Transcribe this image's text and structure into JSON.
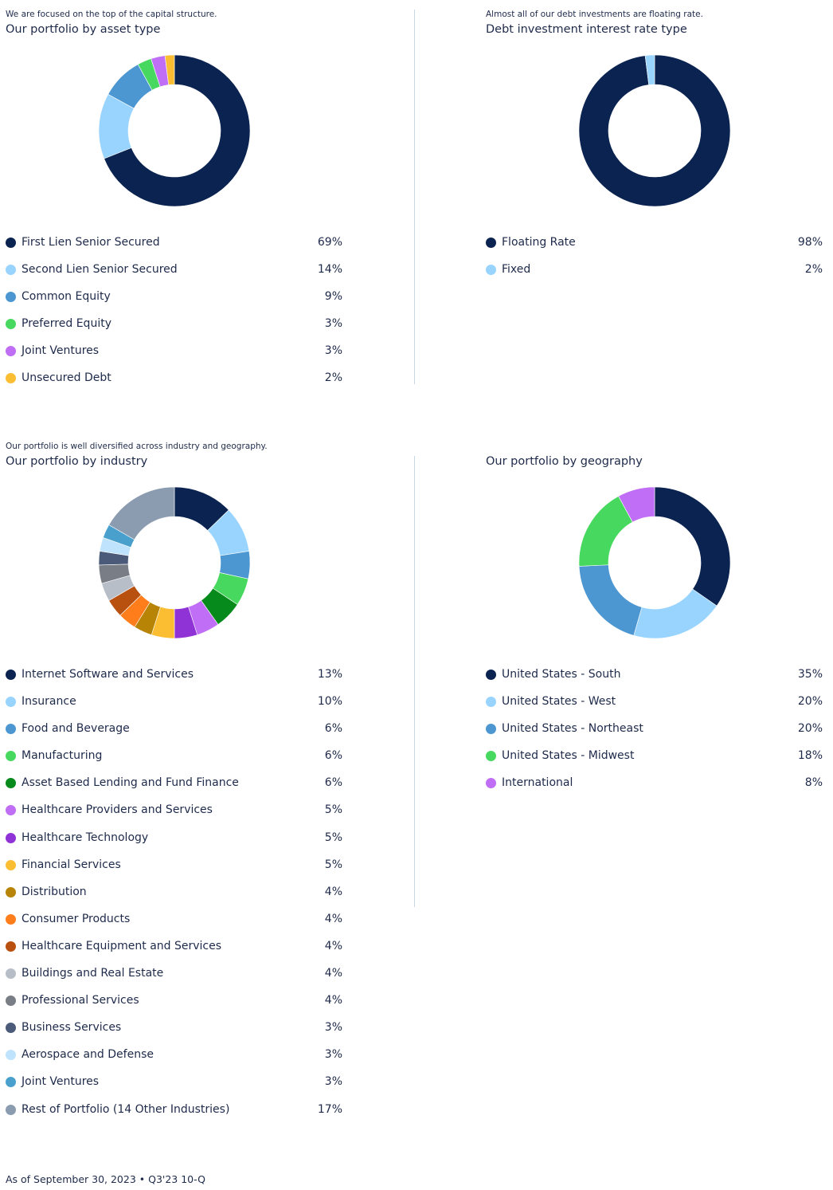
{
  "footer": "As of September 30, 2023 • Q3'23 10-Q",
  "chart_data": [
    {
      "id": "asset",
      "type": "donut",
      "subtitle": "We are focused on the top of the capital structure.",
      "title": "Our portfolio by asset type",
      "categories": [
        "First Lien Senior Secured",
        "Second Lien Senior Secured",
        "Common Equity",
        "Preferred Equity",
        "Joint Ventures",
        "Unsecured Debt"
      ],
      "values": [
        69,
        14,
        9,
        3,
        3,
        2
      ],
      "labels": [
        "69%",
        "14%",
        "9%",
        "3%",
        "3%",
        "2%"
      ],
      "colors": [
        "#0b2350",
        "#99d4ff",
        "#4c97d1",
        "#47d95f",
        "#bf6ef5",
        "#fbbd32"
      ]
    },
    {
      "id": "rate",
      "type": "donut",
      "subtitle": "Almost all of our debt investments are floating rate.",
      "title": "Debt investment interest rate type",
      "categories": [
        "Floating Rate",
        "Fixed"
      ],
      "values": [
        98,
        2
      ],
      "labels": [
        "98%",
        "2%"
      ],
      "colors": [
        "#0b2350",
        "#99d4ff"
      ]
    },
    {
      "id": "industry",
      "type": "donut",
      "subtitle": "Our portfolio is well diversified across industry and geography.",
      "title": "Our portfolio by industry",
      "categories": [
        "Internet Software and Services",
        "Insurance",
        "Food and Beverage",
        "Manufacturing",
        "Asset Based Lending and Fund Finance",
        "Healthcare Providers and Services",
        "Healthcare Technology",
        "Financial Services",
        "Distribution",
        "Consumer Products",
        "Healthcare Equipment and Services",
        "Buildings and Real Estate",
        "Professional Services",
        "Business Services",
        "Aerospace and Defense",
        "Joint Ventures",
        "Rest of Portfolio (14 Other Industries)"
      ],
      "values": [
        13,
        10,
        6,
        6,
        6,
        5,
        5,
        5,
        4,
        4,
        4,
        4,
        4,
        3,
        3,
        3,
        17
      ],
      "labels": [
        "13%",
        "10%",
        "6%",
        "6%",
        "6%",
        "5%",
        "5%",
        "5%",
        "4%",
        "4%",
        "4%",
        "4%",
        "4%",
        "3%",
        "3%",
        "3%",
        "17%"
      ],
      "colors": [
        "#0b2350",
        "#99d4ff",
        "#4c97d1",
        "#47d95f",
        "#068a1b",
        "#bf6ef5",
        "#8f33d6",
        "#fbbd32",
        "#b88406",
        "#ff7d1a",
        "#b85010",
        "#b8bec8",
        "#787d86",
        "#4a5a78",
        "#bfe3fd",
        "#4aa0cd",
        "#8b9bb0"
      ]
    },
    {
      "id": "geo",
      "type": "donut",
      "subtitle": "",
      "title": "Our portfolio by geography",
      "categories": [
        "United States - South",
        "United States - West",
        "United States - Northeast",
        "United States - Midwest",
        "International"
      ],
      "values": [
        35,
        20,
        20,
        18,
        8
      ],
      "labels": [
        "35%",
        "20%",
        "20%",
        "18%",
        "8%"
      ],
      "colors": [
        "#0b2350",
        "#99d4ff",
        "#4c97d1",
        "#47d95f",
        "#bf6ef5"
      ]
    }
  ]
}
